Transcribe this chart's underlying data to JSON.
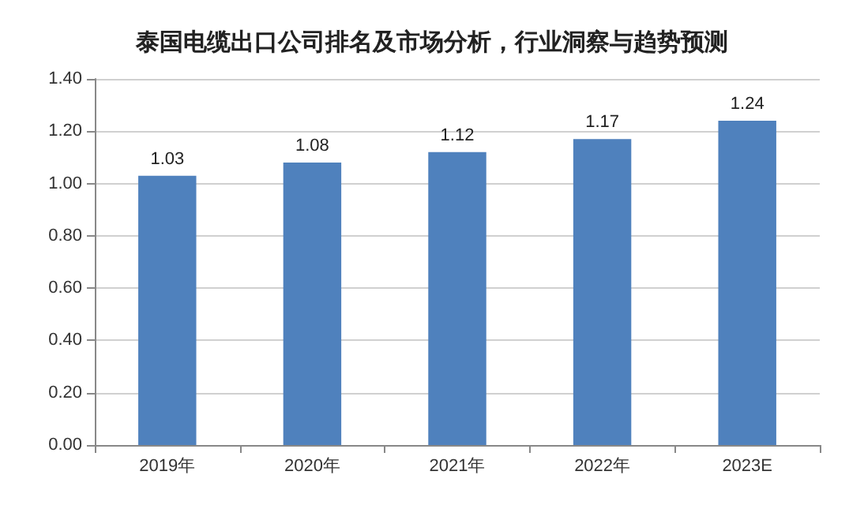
{
  "chart_data": {
    "type": "bar",
    "title": "泰国电缆出口公司排名及市场分析，行业洞察与趋势预测",
    "categories": [
      "2019年",
      "2020年",
      "2021年",
      "2022年",
      "2023E"
    ],
    "values": [
      1.03,
      1.08,
      1.12,
      1.17,
      1.24
    ],
    "color": "#4f81bd",
    "ylim": [
      0,
      1.4
    ],
    "yticks": [
      {
        "value": 0,
        "label": "0.00"
      },
      {
        "value": 0.2,
        "label": "0.20"
      },
      {
        "value": 0.4,
        "label": "0.40"
      },
      {
        "value": 0.6,
        "label": "0.60"
      },
      {
        "value": 0.8,
        "label": "0.80"
      },
      {
        "value": 1.0,
        "label": "1.00"
      },
      {
        "value": 1.2,
        "label": "1.20"
      },
      {
        "value": 1.4,
        "label": "1.40"
      }
    ],
    "grid": "y",
    "data_labels": true
  }
}
